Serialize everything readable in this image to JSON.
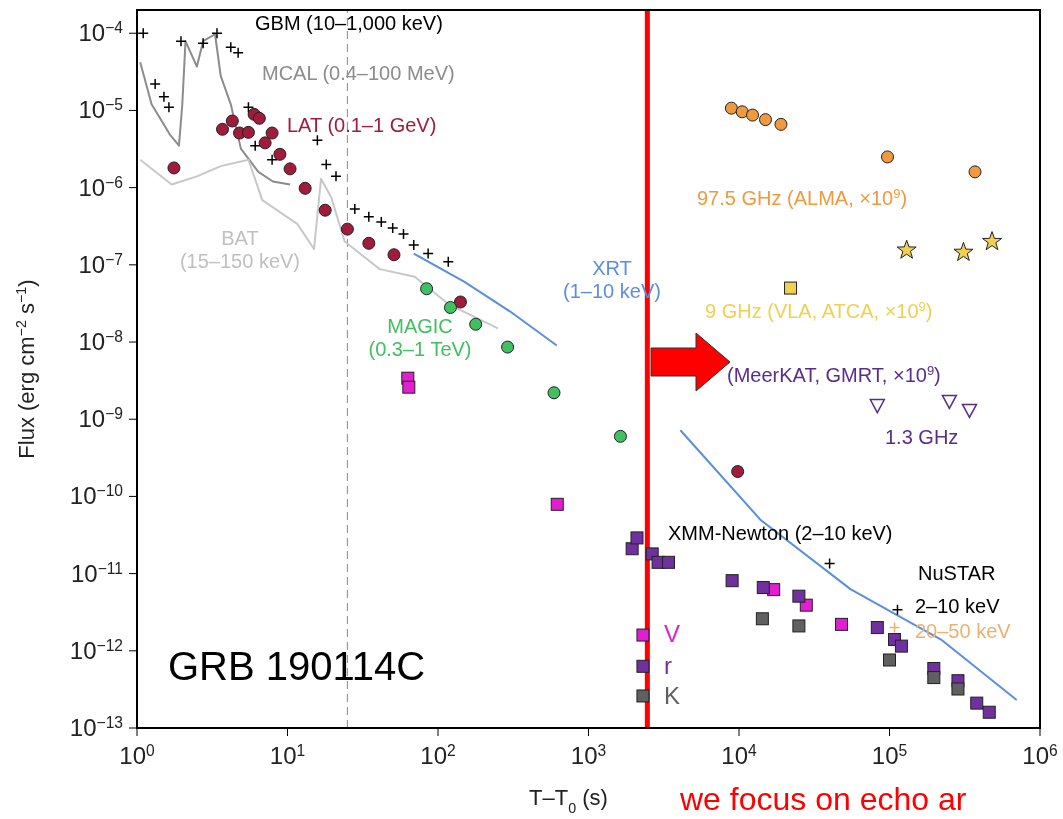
{
  "chart_data": {
    "type": "scatter",
    "xlabel": "T–T$_{0}$ (s)",
    "ylabel": "Flux (erg cm$^{−2}$ s$^{−1}$)",
    "log": "xy",
    "xlim": [
      1,
      1000000
    ],
    "ylim": [
      1e-13,
      0.0002
    ],
    "xticks": [
      {
        "value": 1,
        "label": "10$^{0}$"
      },
      {
        "value": 10,
        "label": "10$^{1}$"
      },
      {
        "value": 100,
        "label": "10$^{2}$"
      },
      {
        "value": 1000,
        "label": "10$^{3}$"
      },
      {
        "value": 10000,
        "label": "10$^{4}$"
      },
      {
        "value": 100000,
        "label": "10$^{5}$"
      },
      {
        "value": 1000000,
        "label": "10$^{6}$"
      }
    ],
    "yticks": [
      {
        "value": 1e-13,
        "label": "10$^{−13}$"
      },
      {
        "value": 1e-12,
        "label": "10$^{−12}$"
      },
      {
        "value": 1e-11,
        "label": "10$^{−11}$"
      },
      {
        "value": 1e-10,
        "label": "10$^{−10}$"
      },
      {
        "value": 1e-09,
        "label": "10$^{−9}$"
      },
      {
        "value": 1e-08,
        "label": "10$^{−8}$"
      },
      {
        "value": 1e-07,
        "label": "10$^{−7}$"
      },
      {
        "value": 1e-06,
        "label": "10$^{−6}$"
      },
      {
        "value": 1e-05,
        "label": "10$^{−5}$"
      },
      {
        "value": 0.0001,
        "label": "10$^{−4}$"
      }
    ],
    "series": [
      {
        "name": "GBM (10–1,000 keV)",
        "type": "scatter",
        "marker": "cross",
        "color": "#000000",
        "x": [
          1.1,
          1.32,
          1.51,
          1.63,
          1.96,
          2.75,
          3.4,
          4.2,
          4.7,
          5.5,
          6.1,
          7.9,
          15.8,
          18.1,
          21,
          28,
          34.7,
          42,
          50,
          59,
          69,
          86,
          117
        ],
        "values": [
          0.0001,
          2.2e-05,
          1.5e-05,
          1.1e-05,
          7.9e-05,
          7.4e-05,
          0.0001,
          6.6e-05,
          5.6e-05,
          1.1e-05,
          3.5e-06,
          2.3e-06,
          4.1e-06,
          2e-06,
          1.4e-06,
          5.3e-07,
          4.2e-07,
          3.6e-07,
          3e-07,
          2.5e-07,
          1.8e-07,
          1.4e-07,
          1.1e-07
        ]
      },
      {
        "name": "MCAL (0.4–100 MeV)",
        "type": "line",
        "marker": "none",
        "color": "#8c8c8c",
        "x": [
          1.05,
          1.25,
          1.65,
          1.9,
          2.0,
          2.1,
          2.5,
          2.75,
          3.3,
          3.6,
          4.2,
          4.9,
          6.4,
          8.0,
          10.4
        ],
        "values": [
          4.2e-05,
          1.2e-05,
          4.9e-06,
          3.5e-06,
          1.2e-05,
          7.9e-05,
          3.7e-05,
          7.9e-05,
          9.7e-05,
          2.8e-05,
          1.2e-05,
          3.2e-06,
          1.6e-06,
          1.2e-06,
          1.1e-06
        ]
      },
      {
        "name": "BAT\n(15–150 keV)",
        "type": "line",
        "marker": "none",
        "color": "#c8c8c8",
        "x": [
          1.05,
          1.7,
          2.5,
          3.6,
          5.5,
          6.8,
          11.6,
          15,
          16.7,
          19.5,
          24,
          41,
          70,
          117,
          250
        ],
        "values": [
          2.3e-06,
          1.1e-06,
          1.4e-06,
          1.9e-06,
          2.3e-06,
          6.9e-07,
          3.4e-07,
          1.6e-07,
          1.3e-06,
          7.5e-07,
          2e-07,
          8.8e-08,
          7e-08,
          3.1e-08,
          1.5e-08
        ]
      },
      {
        "name": "XRT\n(1–10 keV)",
        "type": "line",
        "marker": "none",
        "color": "#5b8ee0",
        "x": [
          69,
          150,
          300,
          616,
          2000,
          4080,
          14000,
          55000,
          220000,
          700000
        ],
        "values": [
          1.4e-07,
          6e-08,
          2.5e-08,
          9e-09,
          null,
          7.2e-10,
          4.9e-11,
          6.3e-12,
          1.4e-12,
          2.3e-13
        ]
      },
      {
        "name": "LAT (0.1–1 GeV)",
        "type": "scatter",
        "marker": "circle",
        "color": "#a01c3c",
        "x": [
          1.76,
          3.7,
          4.3,
          4.8,
          5.5,
          6.0,
          6.5,
          7.1,
          7.9,
          8.9,
          10.4,
          13.1,
          17.8,
          25,
          34.7,
          51,
          141,
          9800
        ],
        "values": [
          1.8e-06,
          5.7e-06,
          7.3e-06,
          5.1e-06,
          5.2e-06,
          8.9e-06,
          7.9e-06,
          3.8e-06,
          5.1e-06,
          2.7e-06,
          1.75e-06,
          9.8e-07,
          5.1e-07,
          2.9e-07,
          1.9e-07,
          1.35e-07,
          3.3e-08,
          2.1e-10
        ]
      },
      {
        "name": "MAGIC\n(0.3–1 TeV)",
        "type": "scatter",
        "marker": "circle",
        "color": "#40c060",
        "x": [
          84,
          121,
          178,
          290,
          590,
          1630
        ],
        "values": [
          4.9e-08,
          2.8e-08,
          1.7e-08,
          8.6e-09,
          2.2e-09,
          6e-10
        ]
      },
      {
        "name": "V",
        "type": "scatter",
        "marker": "square",
        "color": "#e020d0",
        "x": [
          63,
          64,
          620,
          2300,
          17000,
          28000,
          48000
        ],
        "values": [
          3.4e-09,
          2.6e-09,
          7.9e-11,
          1.6e-12,
          6.2e-12,
          3.9e-12,
          2.2e-12
        ]
      },
      {
        "name": "r",
        "type": "scatter",
        "marker": "square",
        "color": "#7030a0",
        "x": [
          1950,
          2100,
          2650,
          2900,
          3400,
          9000,
          14500,
          25000,
          83000,
          108000,
          120000,
          197000,
          285000,
          380000,
          460000,
          2300
        ],
        "values": [
          2.1e-11,
          2.9e-11,
          1.8e-11,
          1.4e-11,
          1.4e-11,
          8.1e-12,
          6.6e-12,
          5.1e-12,
          2e-12,
          1.4e-12,
          1.15e-12,
          5.9e-13,
          4.1e-13,
          2.1e-13,
          1.6e-13,
          6.3e-13
        ]
      },
      {
        "name": "K",
        "type": "scatter",
        "marker": "square",
        "color": "#606060",
        "x": [
          2300,
          14300,
          25000,
          100000,
          197000,
          285000
        ],
        "values": [
          2.6e-13,
          2.6e-12,
          2.1e-12,
          7.6e-13,
          4.5e-13,
          3.2e-13
        ]
      },
      {
        "name": "97.5 GHz (ALMA, ×10$^{9}$)",
        "type": "scatter",
        "marker": "circle",
        "color": "#f09a40",
        "x": [
          8900,
          10500,
          12300,
          15000,
          19000,
          97000,
          370000
        ],
        "values": [
          1.07e-05,
          9.6e-06,
          8.7e-06,
          7.6e-06,
          6.6e-06,
          2.5e-06,
          1.6e-06
        ]
      },
      {
        "name": "9 GHz (VLA, ATCA, ×10$^{9}$)",
        "type": "scatter",
        "marker": "star",
        "color": "#f0d050",
        "x": [
          130000,
          310000,
          480000
        ],
        "values": [
          1.55e-07,
          1.45e-07,
          2e-07
        ]
      },
      {
        "type": "scatter",
        "marker": "square",
        "color": "#f0d050",
        "x": [
          22000
        ],
        "values": [
          5e-08
        ]
      },
      {
        "name": "(MeerKAT, GMRT, ×10$^{9}$)",
        "type": "scatter",
        "marker": "triangle",
        "color": "#5a2d8c",
        "x": [
          83000,
          250000,
          340000
        ],
        "values": [
          1.5e-09,
          1.7e-09,
          1.3e-09
        ]
      },
      {
        "name": "XMM-Newton (2–10 keV)",
        "type": "scatter",
        "marker": "cross",
        "color": "#000000",
        "x": [
          40000
        ],
        "values": [
          1.35e-11
        ]
      },
      {
        "name": "2–10 keV",
        "type": "scatter",
        "marker": "cross",
        "color": "#000000",
        "x": [
          113000
        ],
        "values": [
          3.4e-12
        ]
      },
      {
        "name": "20–50 keV",
        "type": "scatter",
        "marker": "cross",
        "color": "#f0b070",
        "x": [
          108000
        ],
        "values": [
          2e-12
        ]
      }
    ],
    "ref_lines": [
      {
        "axis": "x",
        "value": 25,
        "color": "#888888",
        "line_style": "dashed"
      },
      {
        "axis": "x",
        "value": 2460,
        "color": "#ff0000",
        "line_style": "solid"
      }
    ],
    "annotations": [
      "1.3 GHz",
      "NuSTAR",
      "GRB 190114C",
      "we focus on echo ar"
    ]
  }
}
